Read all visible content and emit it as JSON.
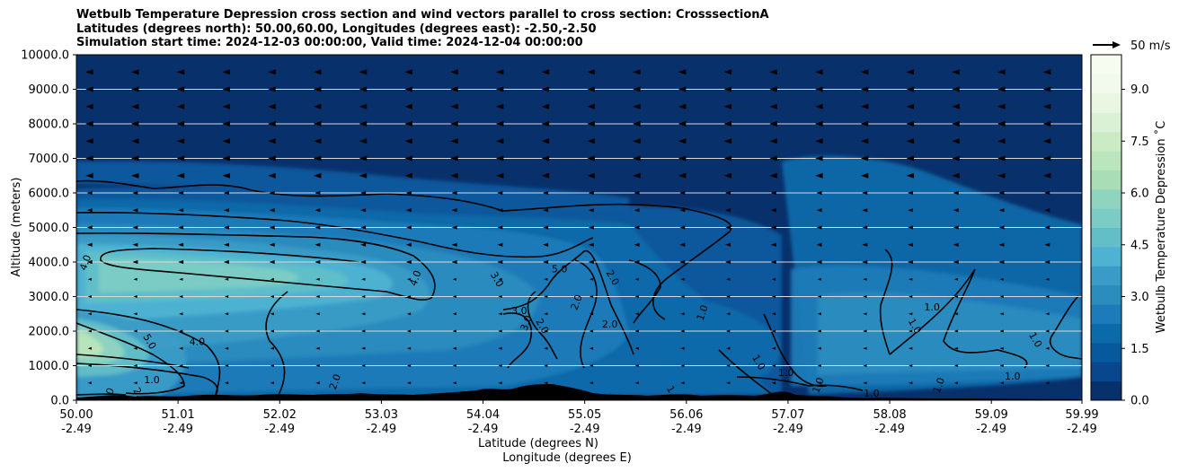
{
  "title_lines": [
    "Wetbulb Temperature Depression cross section and wind vectors parallel to cross section: CrosssectionA",
    "Latitudes (degrees north): 50.00,60.00, Longitudes (degrees east): -2.50,-2.50",
    "Simulation start time: 2024-12-03 00:00:00, Valid time: 2024-12-04 00:00:00"
  ],
  "chart_data": {
    "type": "heatmap",
    "title": "Wetbulb Temperature Depression cross section and wind vectors parallel to cross section: CrosssectionA",
    "subtitle": [
      "Latitudes (degrees north): 50.00,60.00, Longitudes (degrees east): -2.50,-2.50",
      "Simulation start time: 2024-12-03 00:00:00, Valid time: 2024-12-04 00:00:00"
    ],
    "ylabel": "Altitude (meters)",
    "xlabel_lines": [
      "Latitude (degrees N)",
      "Longitude (degrees E)"
    ],
    "ylim": [
      0,
      10000
    ],
    "xlim": [
      50.0,
      59.99
    ],
    "y_ticks": [
      "0.0",
      "1000.0",
      "2000.0",
      "3000.0",
      "4000.0",
      "5000.0",
      "6000.0",
      "7000.0",
      "8000.0",
      "9000.0",
      "10000.0"
    ],
    "x_ticks": [
      {
        "lat": "50.00",
        "lon": "-2.49"
      },
      {
        "lat": "51.01",
        "lon": "-2.49"
      },
      {
        "lat": "52.02",
        "lon": "-2.49"
      },
      {
        "lat": "53.03",
        "lon": "-2.49"
      },
      {
        "lat": "54.04",
        "lon": "-2.49"
      },
      {
        "lat": "55.05",
        "lon": "-2.49"
      },
      {
        "lat": "56.06",
        "lon": "-2.49"
      },
      {
        "lat": "57.07",
        "lon": "-2.49"
      },
      {
        "lat": "58.08",
        "lon": "-2.49"
      },
      {
        "lat": "59.09",
        "lon": "-2.49"
      },
      {
        "lat": "59.99",
        "lon": "-2.49"
      }
    ],
    "grid": "horizontal",
    "colorbar": {
      "label": "Wetbulb Temperature Depression ˚C",
      "range": [
        0,
        10
      ],
      "ticks": [
        "0.0",
        "1.5",
        "3.0",
        "4.5",
        "6.0",
        "7.5",
        "9.0"
      ],
      "colors": [
        "#08306b",
        "#08468e",
        "#08589e",
        "#0b6aaa",
        "#1c7bb8",
        "#2b8cbe",
        "#3a9cc6",
        "#4eb3d3",
        "#62bfc8",
        "#7bccc4",
        "#8fd4bf",
        "#a8ddb5",
        "#bbe5bc",
        "#ccebc5",
        "#dbf1d5",
        "#e8f6e2",
        "#f2faee",
        "#f7fcf0"
      ]
    },
    "quiver_key": {
      "label": "50 m/s",
      "speed_ms": 50
    },
    "contour_labels": [
      {
        "text": "4.0",
        "lat": 50.12,
        "alt": 3950
      },
      {
        "text": "5.0",
        "lat": 50.7,
        "alt": 1650
      },
      {
        "text": "4.0",
        "lat": 51.2,
        "alt": 1600
      },
      {
        "text": "4.0",
        "lat": 53.4,
        "alt": 3500
      },
      {
        "text": "3.0",
        "lat": 54.15,
        "alt": 3450
      },
      {
        "text": "3.0",
        "lat": 54.4,
        "alt": 2500
      },
      {
        "text": "3.0",
        "lat": 54.5,
        "alt": 2200
      },
      {
        "text": "2.0",
        "lat": 54.6,
        "alt": 2100
      },
      {
        "text": "5.0",
        "lat": 54.8,
        "alt": 3700
      },
      {
        "text": "2.0",
        "lat": 55.0,
        "alt": 2800
      },
      {
        "text": "2.0",
        "lat": 55.3,
        "alt": 3500
      },
      {
        "text": "2.0",
        "lat": 55.3,
        "alt": 2100
      },
      {
        "text": "1.0",
        "lat": 56.25,
        "alt": 2500
      },
      {
        "text": "1.0",
        "lat": 56.75,
        "alt": 1050
      },
      {
        "text": "1.0",
        "lat": 57.05,
        "alt": 700
      },
      {
        "text": "1.0",
        "lat": 57.4,
        "alt": 400
      },
      {
        "text": "1.0",
        "lat": 58.3,
        "alt": 2100
      },
      {
        "text": "1.0",
        "lat": 58.5,
        "alt": 2600
      },
      {
        "text": "1.0",
        "lat": 58.6,
        "alt": 400
      },
      {
        "text": "1.0",
        "lat": 59.5,
        "alt": 1700
      },
      {
        "text": "1.0",
        "lat": 59.3,
        "alt": 600
      },
      {
        "text": "2.0",
        "lat": 50.35,
        "alt": 100
      },
      {
        "text": "2.0",
        "lat": 50.6,
        "alt": 100
      },
      {
        "text": "1.0",
        "lat": 50.75,
        "alt": 500
      },
      {
        "text": "2.0",
        "lat": 52.6,
        "alt": 500
      },
      {
        "text": "1.0",
        "lat": 55.9,
        "alt": 150
      },
      {
        "text": "1.0",
        "lat": 57.9,
        "alt": 100
      }
    ]
  }
}
